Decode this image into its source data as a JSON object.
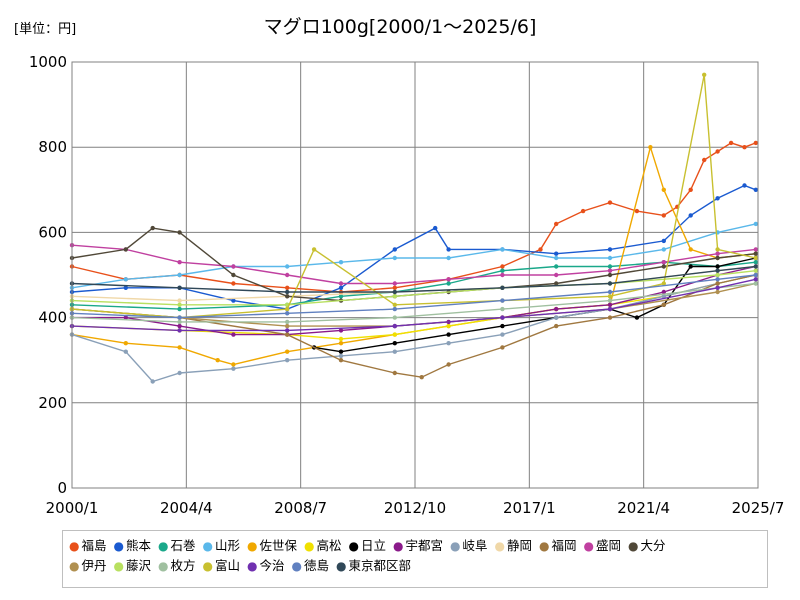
{
  "unit_label": "[単位：円]",
  "chart_data": {
    "type": "line",
    "title": "マグロ100g[2000/1～2025/6]",
    "xlabel": "",
    "ylabel": "",
    "ylim": [
      0,
      1000
    ],
    "yticks": [
      "0",
      "200",
      "400",
      "600",
      "800",
      "1000"
    ],
    "xlim": [
      "2000/1",
      "2025/7"
    ],
    "xticks": [
      "2000/1",
      "2004/4",
      "2008/7",
      "2012/10",
      "2017/1",
      "2021/4",
      "2025/7"
    ],
    "grid": true,
    "legend_position": "bottom",
    "series": [
      {
        "name": "福島",
        "color": "#e8501a",
        "x": [
          "2000/1",
          "2002/1",
          "2004/1",
          "2006/1",
          "2008/1",
          "2010/1",
          "2012/1",
          "2014/1",
          "2016/1",
          "2017/6",
          "2018/1",
          "2019/1",
          "2020/1",
          "2021/1",
          "2022/1",
          "2022/7",
          "2023/1",
          "2023/7",
          "2024/1",
          "2024/7",
          "2025/1",
          "2025/6"
        ],
        "values": [
          520,
          490,
          500,
          480,
          470,
          460,
          470,
          490,
          520,
          560,
          620,
          650,
          670,
          650,
          640,
          660,
          700,
          770,
          790,
          810,
          800,
          810
        ]
      },
      {
        "name": "熊本",
        "color": "#1a5ad0",
        "x": [
          "2000/1",
          "2002/1",
          "2004/1",
          "2006/1",
          "2008/1",
          "2010/1",
          "2012/1",
          "2013/7",
          "2014/1",
          "2016/1",
          "2018/1",
          "2020/1",
          "2022/1",
          "2023/1",
          "2024/1",
          "2025/1",
          "2025/6"
        ],
        "values": [
          460,
          470,
          470,
          440,
          420,
          470,
          560,
          610,
          560,
          560,
          550,
          560,
          580,
          640,
          680,
          710,
          700
        ]
      },
      {
        "name": "石巻",
        "color": "#1aa88a",
        "x": [
          "2000/1",
          "2004/1",
          "2008/1",
          "2010/1",
          "2012/1",
          "2014/1",
          "2016/1",
          "2018/1",
          "2020/1",
          "2022/1",
          "2024/1",
          "2025/6"
        ],
        "values": [
          430,
          420,
          430,
          450,
          460,
          480,
          510,
          520,
          520,
          530,
          520,
          530
        ]
      },
      {
        "name": "山形",
        "color": "#5ab8ea",
        "x": [
          "2000/1",
          "2002/1",
          "2004/1",
          "2006/1",
          "2008/1",
          "2010/1",
          "2012/1",
          "2014/1",
          "2016/1",
          "2018/1",
          "2020/1",
          "2022/1",
          "2024/1",
          "2025/6"
        ],
        "values": [
          470,
          490,
          500,
          520,
          520,
          530,
          540,
          540,
          560,
          540,
          540,
          560,
          600,
          620
        ]
      },
      {
        "name": "佐世保",
        "color": "#f0a800",
        "x": [
          "2000/1",
          "2002/1",
          "2004/1",
          "2005/6",
          "2006/1",
          "2008/1",
          "2010/1",
          "2012/1",
          "2014/1",
          "2016/1",
          "2018/1",
          "2020/1",
          "2021/7",
          "2022/1",
          "2023/1",
          "2024/1",
          "2025/6"
        ],
        "values": [
          360,
          340,
          330,
          300,
          290,
          320,
          340,
          360,
          380,
          400,
          420,
          430,
          800,
          700,
          560,
          540,
          550
        ]
      },
      {
        "name": "高松",
        "color": "#f0e000",
        "x": [
          "2000/1",
          "2004/1",
          "2008/1",
          "2010/1",
          "2012/1",
          "2014/1",
          "2016/1",
          "2018/1",
          "2020/1",
          "2022/1",
          "2024/1",
          "2025/6"
        ],
        "values": [
          380,
          370,
          360,
          350,
          360,
          380,
          400,
          420,
          430,
          450,
          480,
          500
        ]
      },
      {
        "name": "日立",
        "color": "#000000",
        "x": [
          "2009/1",
          "2010/1",
          "2012/1",
          "2014/1",
          "2016/1",
          "2018/1",
          "2020/1",
          "2021/1",
          "2022/1",
          "2023/1",
          "2024/1",
          "2025/6"
        ],
        "values": [
          330,
          320,
          340,
          360,
          380,
          400,
          420,
          400,
          430,
          520,
          520,
          540
        ]
      },
      {
        "name": "宇都宮",
        "color": "#8a1a8a",
        "x": [
          "2000/1",
          "2002/1",
          "2004/1",
          "2006/1",
          "2008/1",
          "2010/1",
          "2012/1",
          "2014/1",
          "2016/1",
          "2018/1",
          "2020/1",
          "2022/1",
          "2024/1",
          "2025/6"
        ],
        "values": [
          400,
          400,
          380,
          360,
          360,
          370,
          380,
          390,
          400,
          420,
          430,
          460,
          500,
          520
        ]
      },
      {
        "name": "岐阜",
        "color": "#8aa0b8",
        "x": [
          "2000/1",
          "2002/1",
          "2003/1",
          "2004/1",
          "2006/1",
          "2008/1",
          "2010/1",
          "2012/1",
          "2014/1",
          "2016/1",
          "2018/1",
          "2020/1",
          "2022/1",
          "2024/1",
          "2025/6"
        ],
        "values": [
          360,
          320,
          250,
          270,
          280,
          300,
          310,
          320,
          340,
          360,
          400,
          420,
          450,
          480,
          500
        ]
      },
      {
        "name": "静岡",
        "color": "#f0d8a8",
        "x": [
          "2000/1",
          "2004/1",
          "2008/1",
          "2012/1",
          "2016/1",
          "2020/1",
          "2024/1",
          "2025/6"
        ],
        "values": [
          450,
          440,
          450,
          460,
          470,
          480,
          510,
          520
        ]
      },
      {
        "name": "福岡",
        "color": "#a07840",
        "x": [
          "2000/1",
          "2004/1",
          "2008/1",
          "2010/1",
          "2012/1",
          "2013/1",
          "2014/1",
          "2016/1",
          "2018/1",
          "2020/1",
          "2022/1",
          "2024/1",
          "2025/6"
        ],
        "values": [
          420,
          400,
          360,
          300,
          270,
          260,
          290,
          330,
          380,
          400,
          430,
          480,
          500
        ]
      },
      {
        "name": "盛岡",
        "color": "#c040a0",
        "x": [
          "2000/1",
          "2002/1",
          "2004/1",
          "2006/1",
          "2008/1",
          "2010/1",
          "2012/1",
          "2014/1",
          "2016/1",
          "2018/1",
          "2020/1",
          "2022/1",
          "2024/1",
          "2025/6"
        ],
        "values": [
          570,
          560,
          530,
          520,
          500,
          480,
          480,
          490,
          500,
          500,
          510,
          530,
          550,
          560
        ]
      },
      {
        "name": "大分",
        "color": "#504838",
        "x": [
          "2000/1",
          "2002/1",
          "2003/1",
          "2004/1",
          "2006/1",
          "2008/1",
          "2010/1",
          "2012/1",
          "2014/1",
          "2016/1",
          "2018/1",
          "2020/1",
          "2022/1",
          "2024/1",
          "2025/6"
        ],
        "values": [
          540,
          560,
          610,
          600,
          500,
          450,
          440,
          450,
          460,
          470,
          480,
          500,
          520,
          540,
          550
        ]
      },
      {
        "name": "伊丹",
        "color": "#b09050",
        "x": [
          "2000/1",
          "2004/1",
          "2008/1",
          "2012/1",
          "2016/1",
          "2020/1",
          "2024/1",
          "2025/6"
        ],
        "values": [
          420,
          400,
          380,
          380,
          400,
          420,
          460,
          480
        ]
      },
      {
        "name": "藤沢",
        "color": "#b8e060",
        "x": [
          "2000/1",
          "2004/1",
          "2008/1",
          "2012/1",
          "2016/1",
          "2020/1",
          "2024/1",
          "2025/6"
        ],
        "values": [
          440,
          430,
          430,
          450,
          470,
          480,
          500,
          510
        ]
      },
      {
        "name": "枚方",
        "color": "#a0c0a0",
        "x": [
          "2000/1",
          "2004/1",
          "2008/1",
          "2012/1",
          "2016/1",
          "2020/1",
          "2024/1",
          "2025/6"
        ],
        "values": [
          400,
          390,
          390,
          400,
          420,
          440,
          470,
          480
        ]
      },
      {
        "name": "富山",
        "color": "#c8c030",
        "x": [
          "2000/1",
          "2004/1",
          "2008/1",
          "2009/1",
          "2012/1",
          "2016/1",
          "2020/1",
          "2022/1",
          "2023/7",
          "2024/1",
          "2025/6"
        ],
        "values": [
          420,
          400,
          420,
          560,
          430,
          440,
          450,
          480,
          970,
          560,
          540
        ]
      },
      {
        "name": "今治",
        "color": "#7030b0",
        "x": [
          "2000/1",
          "2004/1",
          "2008/1",
          "2012/1",
          "2016/1",
          "2020/1",
          "2024/1",
          "2025/6"
        ],
        "values": [
          380,
          370,
          370,
          380,
          400,
          420,
          470,
          490
        ]
      },
      {
        "name": "徳島",
        "color": "#6080c0",
        "x": [
          "2000/1",
          "2004/1",
          "2008/1",
          "2012/1",
          "2016/1",
          "2020/1",
          "2024/1",
          "2025/6"
        ],
        "values": [
          410,
          400,
          410,
          420,
          440,
          460,
          490,
          500
        ]
      },
      {
        "name": "東京都区部",
        "color": "#304858",
        "x": [
          "2000/1",
          "2004/1",
          "2008/1",
          "2012/1",
          "2016/1",
          "2020/1",
          "2024/1",
          "2025/6"
        ],
        "values": [
          480,
          470,
          460,
          460,
          470,
          480,
          510,
          520
        ]
      }
    ]
  }
}
